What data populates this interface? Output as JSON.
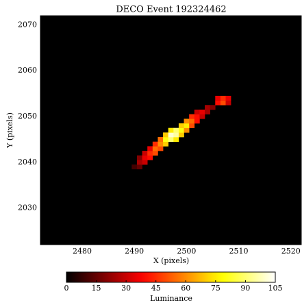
{
  "chart_data": {
    "type": "heatmap",
    "title": "DECO Event 192324462",
    "xlabel": "X (pixels)",
    "ylabel": "Y (pixels)",
    "colormap": "hot",
    "x": [
      2490,
      2491,
      2491,
      2492,
      2491,
      2492,
      2493,
      2492,
      2493,
      2494,
      2493,
      2494,
      2495,
      2494,
      2495,
      2496,
      2495,
      2496,
      2497,
      2498,
      2496,
      2497,
      2498,
      2499,
      2497,
      2498,
      2499,
      2500,
      2499,
      2500,
      2501,
      2500,
      2501,
      2502,
      2501,
      2502,
      2503,
      2502,
      2503,
      2504,
      2504,
      2505,
      2506,
      2507,
      2508,
      2506,
      2507,
      2508
    ],
    "y": [
      2039,
      2039,
      2040,
      2040,
      2041,
      2041,
      2041,
      2042,
      2042,
      2042,
      2043,
      2043,
      2043,
      2044,
      2044,
      2044,
      2045,
      2045,
      2045,
      2045,
      2046,
      2046,
      2046,
      2046,
      2047,
      2047,
      2047,
      2047,
      2048,
      2048,
      2048,
      2049,
      2049,
      2049,
      2050,
      2050,
      2050,
      2051,
      2051,
      2051,
      2052,
      2052,
      2053,
      2053,
      2053,
      2054,
      2054,
      2054
    ],
    "values": [
      10,
      15,
      25,
      30,
      20,
      35,
      40,
      30,
      45,
      50,
      35,
      55,
      50,
      45,
      60,
      70,
      55,
      80,
      90,
      75,
      70,
      100,
      95,
      70,
      75,
      90,
      80,
      60,
      70,
      75,
      50,
      60,
      55,
      40,
      45,
      40,
      30,
      30,
      35,
      25,
      25,
      20,
      40,
      50,
      30,
      35,
      45,
      35
    ],
    "xlim": [
      2472,
      2522
    ],
    "ylim": [
      2022,
      2072
    ],
    "xticks": [
      2480,
      2490,
      2500,
      2510,
      2520
    ],
    "yticks": [
      2030,
      2040,
      2050,
      2060,
      2070
    ],
    "colorbar": {
      "label": "Luminance",
      "lim": [
        0,
        105
      ],
      "ticks": [
        0,
        15,
        30,
        45,
        60,
        75,
        90,
        105
      ]
    }
  }
}
